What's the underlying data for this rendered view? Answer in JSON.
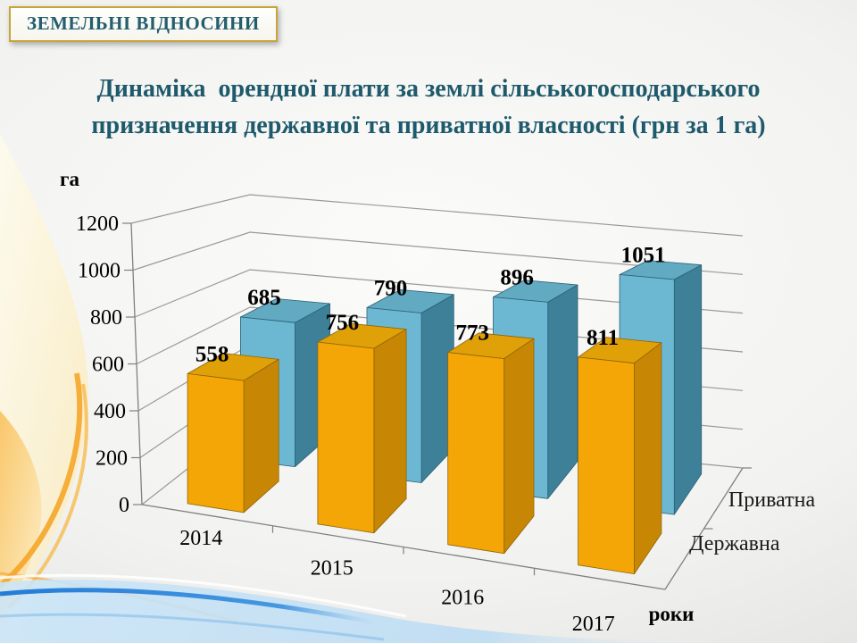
{
  "slide": {
    "badge": "ЗЕМЕЛЬНІ ВІДНОСИНИ",
    "title_lines": [
      "Динаміка  орендної плати за землі сільськогосподарського",
      "призначення державної та приватної власності (грн за 1 га)"
    ]
  },
  "theme": {
    "title_color": "#1E5A6C",
    "badge_border_color": "#C9A43B",
    "grid_color": "#999999",
    "axis_color": "#808080",
    "label_color": "#000000"
  },
  "chart_data": {
    "type": "bar",
    "projection": "3d",
    "title": "Динаміка орендної плати за землі сільськогосподарського призначення державної та приватної власності (грн за 1 га)",
    "categories": [
      "2014",
      "2015",
      "2016",
      "2017"
    ],
    "series": [
      {
        "name": "Державна",
        "row": "front",
        "values": [
          558,
          756,
          773,
          811
        ],
        "colors": {
          "front": "#F4A607",
          "top": "#E0A008",
          "side": "#C78705",
          "edge": "#8E6508"
        }
      },
      {
        "name": "Приватна",
        "row": "back",
        "values": [
          685,
          790,
          896,
          1051
        ],
        "colors": {
          "front": "#6CB7D2",
          "top": "#62AAC1",
          "side": "#3D8098",
          "edge": "#2A6076"
        }
      }
    ],
    "value_axis": {
      "title": "га",
      "min": 0,
      "max": 1200,
      "step": 200,
      "tick_labels": [
        "0",
        "200",
        "400",
        "600",
        "800",
        "1000",
        "1200"
      ]
    },
    "category_axis": {
      "title": "роки"
    },
    "series_axis_labels_back_to_front": [
      "Приватна",
      "Державна"
    ],
    "grid": true,
    "data_labels": true
  }
}
